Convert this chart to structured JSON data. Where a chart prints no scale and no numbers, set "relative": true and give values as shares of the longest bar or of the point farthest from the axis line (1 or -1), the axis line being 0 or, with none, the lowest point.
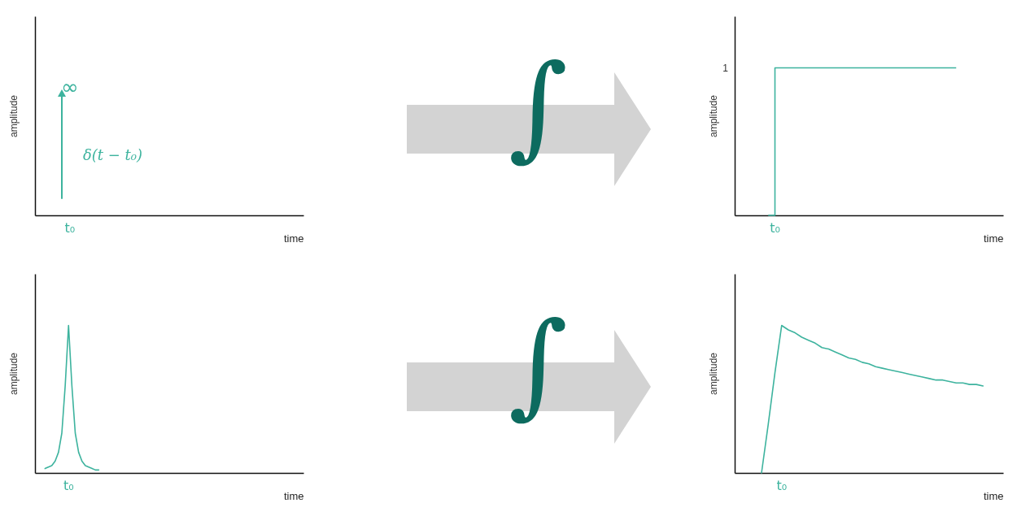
{
  "chart_data": [
    {
      "type": "other",
      "xlabel": "time",
      "ylabel": "amplitude",
      "color": "#3db39e",
      "annotations": [
        "t₀",
        "∞",
        "δ(t − t₀)"
      ]
    },
    {
      "type": "other",
      "annotations": [
        "∫"
      ]
    },
    {
      "type": "step",
      "relative": true,
      "xlabel": "time",
      "ylabel": "amplitude",
      "tick_labels": false,
      "color": "#3db39e",
      "categories": [
        null,
        null,
        null,
        null,
        null,
        null,
        null,
        null,
        null,
        null,
        null,
        null,
        null,
        null,
        null,
        null,
        null,
        null,
        null,
        null,
        null,
        null,
        null,
        null,
        null,
        null,
        null,
        null,
        null,
        null,
        null,
        null,
        null,
        null,
        null,
        null,
        null,
        null,
        null,
        null,
        null
      ],
      "values": [
        null,
        null,
        null,
        null,
        null,
        0,
        1,
        1,
        1,
        1,
        1,
        1,
        1,
        1,
        1,
        1,
        1,
        1,
        1,
        1,
        1,
        1,
        1,
        1,
        1,
        1,
        1,
        1,
        1,
        1,
        1,
        1,
        1,
        1,
        null,
        null,
        null,
        null,
        null,
        null,
        null
      ],
      "annotations": [
        "t₀",
        "1"
      ]
    },
    {
      "type": "line",
      "relative": true,
      "xlabel": "time",
      "ylabel": "amplitude",
      "tick_labels": false,
      "color": "#3db39e",
      "categories": [
        null,
        null,
        null,
        null,
        null,
        null,
        null,
        null,
        null,
        null,
        null,
        null,
        null,
        null,
        null,
        null,
        null,
        null,
        null,
        null,
        null,
        null,
        null,
        null,
        null,
        null,
        null,
        null,
        null,
        null,
        null,
        null,
        null,
        null,
        null,
        null,
        null,
        null,
        null,
        null,
        null,
        null,
        null,
        null,
        null,
        null,
        null,
        null,
        null,
        null,
        null,
        null,
        null,
        null,
        null,
        null,
        null,
        null,
        null,
        null,
        null,
        null,
        null,
        null,
        null,
        null,
        null,
        null,
        null,
        null,
        null,
        null,
        null,
        null,
        null,
        null,
        null,
        null,
        null,
        null,
        null
      ],
      "values": [
        null,
        null,
        null,
        0.03,
        0.04,
        0.05,
        0.08,
        0.14,
        0.27,
        0.59,
        1,
        0.59,
        0.27,
        0.14,
        0.08,
        0.05,
        0.04,
        0.03,
        0.02,
        0.02,
        null,
        null,
        null,
        null,
        null,
        null,
        null,
        null,
        null,
        null,
        null,
        null,
        null,
        null,
        null,
        null,
        null,
        null,
        null,
        null,
        null,
        null,
        null,
        null,
        null,
        null,
        null,
        null,
        null,
        null,
        null,
        null,
        null,
        null,
        null,
        null,
        null,
        null,
        null,
        null,
        null,
        null,
        null,
        null,
        null,
        null,
        null,
        null,
        null,
        null,
        null,
        null,
        null,
        null,
        null,
        null,
        null,
        null,
        null,
        null,
        null
      ],
      "annotations": [
        "t₀"
      ]
    },
    {
      "type": "other",
      "annotations": [
        "∫"
      ]
    },
    {
      "type": "line",
      "relative": true,
      "xlabel": "time",
      "ylabel": "amplitude",
      "tick_labels": false,
      "color": "#3db39e",
      "categories": [
        null,
        null,
        null,
        null,
        null,
        null,
        null,
        null,
        null,
        null,
        null,
        null,
        null,
        null,
        null,
        null,
        null,
        null,
        null,
        null,
        null,
        null,
        null,
        null,
        null,
        null,
        null,
        null,
        null,
        null,
        null,
        null,
        null,
        null,
        null,
        null,
        null,
        null,
        null,
        null,
        null
      ],
      "values": [
        null,
        null,
        null,
        null,
        0,
        0.33,
        0.68,
        1,
        0.97,
        0.95,
        0.92,
        0.9,
        0.88,
        0.85,
        0.84,
        0.82,
        0.8,
        0.78,
        0.77,
        0.75,
        0.74,
        0.72,
        0.71,
        0.7,
        0.69,
        0.68,
        0.67,
        0.66,
        0.65,
        0.64,
        0.63,
        0.63,
        0.62,
        0.61,
        0.61,
        0.6,
        0.6,
        0.59,
        null,
        null,
        null
      ],
      "annotations": [
        "t₀"
      ]
    }
  ]
}
